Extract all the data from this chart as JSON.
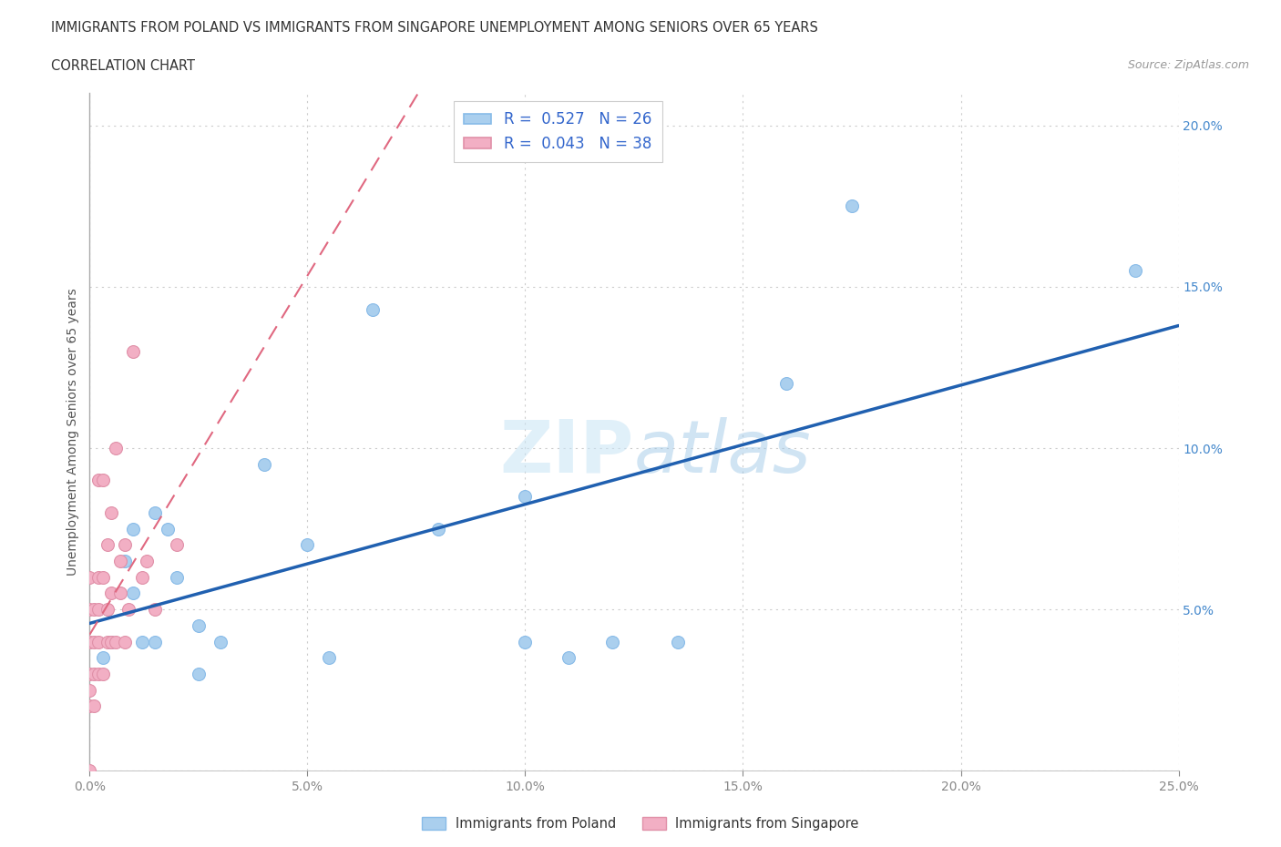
{
  "title_line1": "IMMIGRANTS FROM POLAND VS IMMIGRANTS FROM SINGAPORE UNEMPLOYMENT AMONG SENIORS OVER 65 YEARS",
  "title_line2": "CORRELATION CHART",
  "source": "Source: ZipAtlas.com",
  "ylabel": "Unemployment Among Seniors over 65 years",
  "xlim": [
    0.0,
    0.25
  ],
  "ylim": [
    0.0,
    0.21
  ],
  "xticks": [
    0.0,
    0.05,
    0.1,
    0.15,
    0.2,
    0.25
  ],
  "yticks": [
    0.0,
    0.05,
    0.1,
    0.15,
    0.2
  ],
  "xtick_labels": [
    "0.0%",
    "5.0%",
    "10.0%",
    "15.0%",
    "20.0%",
    "25.0%"
  ],
  "ytick_labels": [
    "",
    "5.0%",
    "10.0%",
    "15.0%",
    "20.0%"
  ],
  "poland_color": "#aacfee",
  "singapore_color": "#f2afc4",
  "poland_line_color": "#2060b0",
  "singapore_line_color": "#e06880",
  "legend_poland_R": "0.527",
  "legend_poland_N": "26",
  "legend_singapore_R": "0.043",
  "legend_singapore_N": "38",
  "poland_x": [
    0.003,
    0.005,
    0.008,
    0.01,
    0.01,
    0.012,
    0.015,
    0.015,
    0.018,
    0.02,
    0.025,
    0.025,
    0.03,
    0.04,
    0.05,
    0.055,
    0.065,
    0.08,
    0.1,
    0.1,
    0.11,
    0.12,
    0.135,
    0.16,
    0.175,
    0.24
  ],
  "poland_y": [
    0.035,
    0.04,
    0.065,
    0.055,
    0.075,
    0.04,
    0.08,
    0.04,
    0.075,
    0.06,
    0.045,
    0.03,
    0.04,
    0.095,
    0.07,
    0.035,
    0.143,
    0.075,
    0.085,
    0.04,
    0.035,
    0.04,
    0.04,
    0.12,
    0.175,
    0.155
  ],
  "singapore_x": [
    0.0,
    0.0,
    0.0,
    0.0,
    0.0,
    0.0,
    0.0,
    0.0,
    0.001,
    0.001,
    0.001,
    0.001,
    0.002,
    0.002,
    0.002,
    0.002,
    0.002,
    0.003,
    0.003,
    0.003,
    0.004,
    0.004,
    0.004,
    0.005,
    0.005,
    0.005,
    0.006,
    0.006,
    0.007,
    0.007,
    0.008,
    0.008,
    0.009,
    0.01,
    0.012,
    0.013,
    0.015,
    0.02
  ],
  "singapore_y": [
    0.0,
    0.02,
    0.025,
    0.03,
    0.04,
    0.04,
    0.05,
    0.06,
    0.02,
    0.03,
    0.04,
    0.05,
    0.03,
    0.04,
    0.05,
    0.06,
    0.09,
    0.03,
    0.06,
    0.09,
    0.04,
    0.05,
    0.07,
    0.04,
    0.055,
    0.08,
    0.04,
    0.1,
    0.055,
    0.065,
    0.04,
    0.07,
    0.05,
    0.13,
    0.06,
    0.065,
    0.05,
    0.07
  ]
}
